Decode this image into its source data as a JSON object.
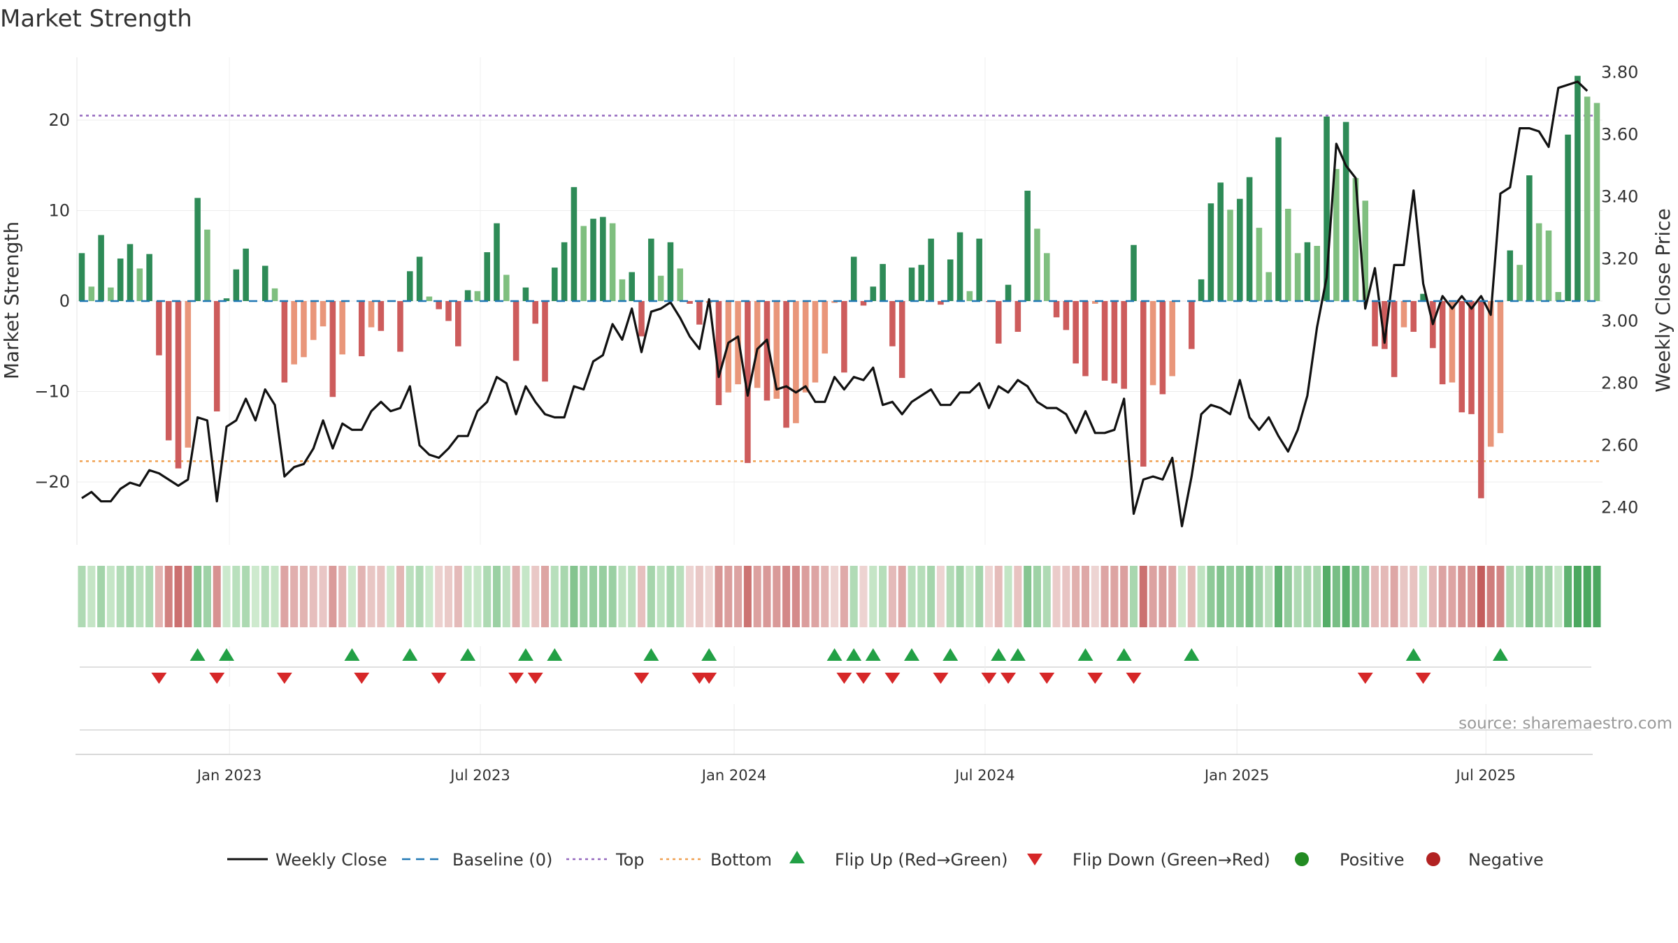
{
  "chart_data": {
    "type": "bar+line",
    "title": "Market Strength",
    "ylabel_left": "Market Strength",
    "ylabel_right": "Weekly Close Price",
    "y_left_range": [
      -26,
      27
    ],
    "y_right_range": [
      2.29,
      3.85
    ],
    "y_left_ticks": [
      "20",
      "10",
      "0",
      "−10",
      "−20"
    ],
    "y_left_tick_values": [
      20,
      10,
      0,
      -10,
      -20
    ],
    "y_right_ticks": [
      "3.80",
      "3.60",
      "3.40",
      "3.20",
      "3.00",
      "2.80",
      "2.60",
      "2.40"
    ],
    "y_right_tick_values": [
      3.8,
      3.6,
      3.4,
      3.2,
      3.0,
      2.8,
      2.6,
      2.4
    ],
    "x_ticks": [
      "Jan 2023",
      "Jul 2023",
      "Jan 2024",
      "Jul 2024",
      "Jan 2025",
      "Jul 2025"
    ],
    "x_tick_weeks": [
      15.3,
      41.3,
      67.6,
      93.6,
      119.7,
      145.5
    ],
    "top_line": 20.5,
    "bottom_line": -17.7,
    "strength": [
      5.3,
      1.6,
      7.3,
      1.5,
      4.7,
      6.3,
      3.6,
      5.2,
      -6,
      -15.4,
      -18.5,
      -16.2,
      11.4,
      7.9,
      -12.2,
      0.3,
      3.5,
      5.8,
      0,
      3.9,
      1.4,
      -9,
      -7,
      -6.2,
      -4.3,
      -2.8,
      -10.6,
      -5.9,
      0,
      -6.1,
      -2.9,
      -3.3,
      0,
      -5.6,
      3.3,
      4.9,
      0.5,
      -0.9,
      -2.2,
      -5,
      1.2,
      1.1,
      5.4,
      8.6,
      2.9,
      -6.6,
      1.5,
      -2.5,
      -8.9,
      3.7,
      6.5,
      12.6,
      8.3,
      9.1,
      9.3,
      8.6,
      2.4,
      3.2,
      -3.9,
      6.9,
      2.8,
      6.5,
      3.6,
      -0.3,
      -2.6,
      -0.2,
      -11.5,
      -10.1,
      -9.2,
      -17.9,
      -9.6,
      -11,
      -10.8,
      -14,
      -13.5,
      -10.1,
      -9,
      -5.8,
      -0.2,
      -7.9,
      4.9,
      -0.5,
      1.6,
      4.1,
      -5,
      -8.5,
      3.7,
      4,
      6.9,
      -0.4,
      4.6,
      7.6,
      1.1,
      6.9,
      -0.1,
      -4.7,
      1.8,
      -3.4,
      12.2,
      8,
      5.3,
      -1.8,
      -3.2,
      -6.9,
      -8.3,
      -0.3,
      -8.8,
      -9.1,
      -9.7,
      6.2,
      -18.3,
      -9.3,
      -10.3,
      -8.3,
      0,
      -5.3,
      2.4,
      10.8,
      13.1,
      10.1,
      11.3,
      13.7,
      8.1,
      3.2,
      18.1,
      10.2,
      5.3,
      6.5,
      6.1,
      20.4,
      14.6,
      19.8,
      13.6,
      11.1,
      -5,
      -5.3,
      -8.4,
      -2.9,
      -3.4,
      0.8,
      -5.2,
      -9.2,
      -9,
      -12.3,
      -12.5,
      -21.8,
      -16.1,
      -14.6,
      5.6,
      4,
      13.9,
      8.6,
      7.8,
      1,
      18.4,
      24.9,
      22.6,
      21.9
    ],
    "close": [
      2.43,
      2.45,
      2.42,
      2.42,
      2.46,
      2.48,
      2.47,
      2.52,
      2.51,
      2.49,
      2.47,
      2.49,
      2.69,
      2.68,
      2.42,
      2.66,
      2.68,
      2.75,
      2.68,
      2.78,
      2.73,
      2.5,
      2.53,
      2.54,
      2.59,
      2.68,
      2.59,
      2.67,
      2.65,
      2.65,
      2.71,
      2.74,
      2.71,
      2.72,
      2.79,
      2.6,
      2.57,
      2.56,
      2.59,
      2.63,
      2.63,
      2.71,
      2.74,
      2.82,
      2.8,
      2.7,
      2.79,
      2.74,
      2.7,
      2.69,
      2.69,
      2.79,
      2.78,
      2.87,
      2.89,
      2.99,
      2.94,
      3.04,
      2.9,
      3.03,
      3.04,
      3.06,
      3.01,
      2.95,
      2.91,
      3.07,
      2.82,
      2.93,
      2.95,
      2.76,
      2.91,
      2.94,
      2.78,
      2.79,
      2.77,
      2.79,
      2.74,
      2.74,
      2.82,
      2.78,
      2.82,
      2.81,
      2.85,
      2.73,
      2.74,
      2.7,
      2.74,
      2.76,
      2.78,
      2.73,
      2.73,
      2.77,
      2.77,
      2.8,
      2.72,
      2.79,
      2.77,
      2.81,
      2.79,
      2.74,
      2.72,
      2.72,
      2.7,
      2.64,
      2.71,
      2.64,
      2.64,
      2.65,
      2.75,
      2.38,
      2.49,
      2.5,
      2.49,
      2.56,
      2.34,
      2.5,
      2.7,
      2.73,
      2.72,
      2.7,
      2.81,
      2.69,
      2.65,
      2.69,
      2.63,
      2.58,
      2.65,
      2.76,
      2.98,
      3.14,
      3.57,
      3.5,
      3.46,
      3.04,
      3.17,
      2.93,
      3.18,
      3.18,
      3.42,
      3.12,
      2.99,
      3.08,
      3.04,
      3.08,
      3.04,
      3.08,
      3.02,
      3.41,
      3.43,
      3.62,
      3.62,
      3.61,
      3.56,
      3.75,
      3.76,
      3.77,
      3.74
    ],
    "flip_up_weeks": [
      12,
      15,
      28,
      34,
      40,
      46,
      49,
      59,
      65,
      78,
      80,
      82,
      86,
      90,
      95,
      97,
      104,
      108,
      115,
      138,
      147
    ],
    "flip_down_weeks": [
      8,
      14,
      21,
      29,
      37,
      45,
      47,
      58,
      64,
      65,
      79,
      81,
      84,
      89,
      94,
      96,
      100,
      105,
      109,
      133,
      139
    ],
    "legend": [
      "Weekly Close",
      "Baseline (0)",
      "Top",
      "Bottom",
      "Flip Up (Red→Green)",
      "Flip Down (Green→Red)",
      "Positive",
      "Negative"
    ]
  },
  "source": "source: sharemaestro.com",
  "colors": {
    "pos_dark": "#2e8b57",
    "pos_light": "#7fbf7f",
    "neg_dark": "#cd5c5c",
    "neg_light": "#e9967a",
    "close_line": "#111111",
    "baseline": "#1f77b4",
    "top": "#9467bd",
    "bottom": "#f0a050",
    "flip_up": "#22a045",
    "flip_down": "#d62728",
    "positive_dot": "#228b22",
    "negative_dot": "#b22222"
  }
}
